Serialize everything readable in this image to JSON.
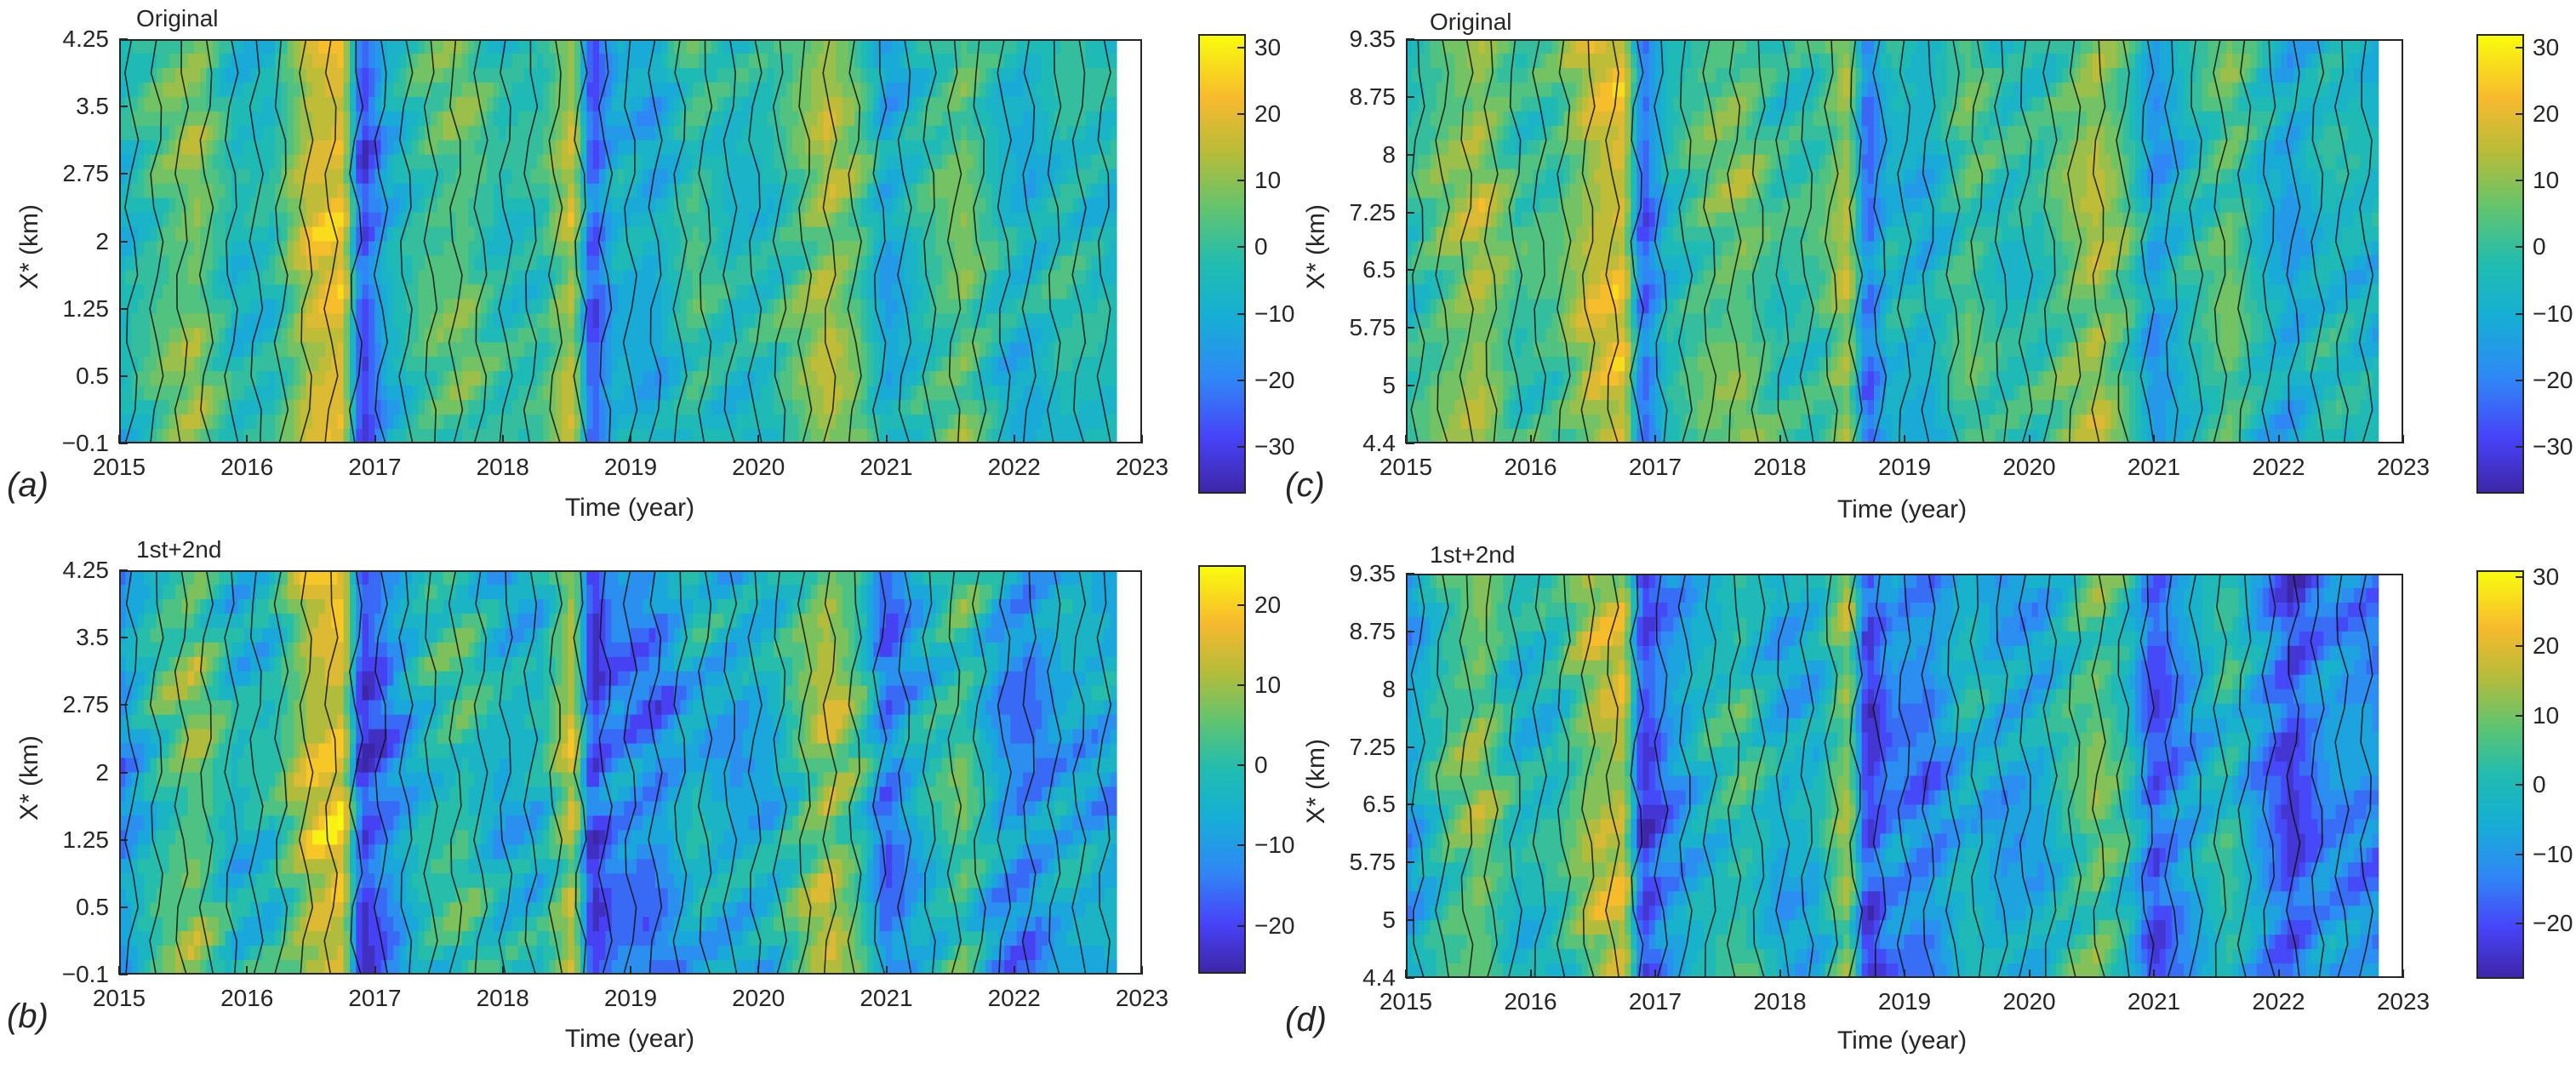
{
  "colormap": [
    "#3e26a8",
    "#4743f8",
    "#2f88f5",
    "#16aed5",
    "#21bcb0",
    "#61c46f",
    "#b5bc3a",
    "#f7b92e",
    "#f9fb0e"
  ],
  "chart_data": [
    {
      "id": "a",
      "panel_label": "(a)",
      "type": "heatmap",
      "title": "Original",
      "xlabel": "Time (year)",
      "ylabel": "X* (km)",
      "x_ticks": [
        "2015",
        "2016",
        "2017",
        "2018",
        "2019",
        "2020",
        "2021",
        "2022",
        "2023"
      ],
      "y_ticks": [
        "4.25",
        "3.5",
        "2.75",
        "2",
        "1.25",
        "0.5",
        "-0.1"
      ],
      "xlim": [
        2015,
        2023
      ],
      "ylim": [
        -0.1,
        4.25
      ],
      "data_xmax": 2022.8,
      "colorbar_ticks": [
        "30",
        "20",
        "10",
        "0",
        "-10",
        "-20",
        "-30"
      ],
      "clim": [
        -37,
        32
      ],
      "time_profile": [
        [
          2015.0,
          -8
        ],
        [
          2015.3,
          2
        ],
        [
          2015.6,
          10
        ],
        [
          2015.9,
          -6
        ],
        [
          2016.2,
          -4
        ],
        [
          2016.5,
          18
        ],
        [
          2016.75,
          22
        ],
        [
          2016.9,
          -30
        ],
        [
          2017.1,
          -10
        ],
        [
          2017.4,
          2
        ],
        [
          2017.7,
          6
        ],
        [
          2018.0,
          -4
        ],
        [
          2018.3,
          -2
        ],
        [
          2018.55,
          16
        ],
        [
          2018.7,
          -28
        ],
        [
          2018.9,
          -8
        ],
        [
          2019.2,
          -12
        ],
        [
          2019.5,
          2
        ],
        [
          2019.8,
          -6
        ],
        [
          2020.1,
          -4
        ],
        [
          2020.3,
          4
        ],
        [
          2020.55,
          14
        ],
        [
          2020.8,
          4
        ],
        [
          2021.0,
          -14
        ],
        [
          2021.3,
          -2
        ],
        [
          2021.6,
          8
        ],
        [
          2021.9,
          -6
        ],
        [
          2022.1,
          -10
        ],
        [
          2022.4,
          -2
        ],
        [
          2022.8,
          -6
        ]
      ]
    },
    {
      "id": "b",
      "panel_label": "(b)",
      "type": "heatmap",
      "title": "1st+2nd",
      "xlabel": "Time (year)",
      "ylabel": "X* (km)",
      "x_ticks": [
        "2015",
        "2016",
        "2017",
        "2018",
        "2019",
        "2020",
        "2021",
        "2022",
        "2023"
      ],
      "y_ticks": [
        "4.25",
        "3.5",
        "2.75",
        "2",
        "1.25",
        "0.5",
        "-0.1"
      ],
      "xlim": [
        2015,
        2023
      ],
      "ylim": [
        -0.1,
        4.25
      ],
      "data_xmax": 2022.8,
      "colorbar_ticks": [
        "20",
        "10",
        "0",
        "-10",
        "-20"
      ],
      "clim": [
        -26,
        25
      ],
      "time_profile": [
        [
          2015.0,
          -12
        ],
        [
          2015.3,
          0
        ],
        [
          2015.6,
          8
        ],
        [
          2015.9,
          -4
        ],
        [
          2016.2,
          -2
        ],
        [
          2016.5,
          14
        ],
        [
          2016.75,
          18
        ],
        [
          2016.9,
          -22
        ],
        [
          2017.1,
          -14
        ],
        [
          2017.4,
          -2
        ],
        [
          2017.7,
          2
        ],
        [
          2018.0,
          -6
        ],
        [
          2018.3,
          -4
        ],
        [
          2018.55,
          14
        ],
        [
          2018.7,
          -22
        ],
        [
          2018.9,
          -12
        ],
        [
          2019.2,
          -14
        ],
        [
          2019.5,
          -4
        ],
        [
          2019.8,
          -8
        ],
        [
          2020.1,
          -6
        ],
        [
          2020.3,
          2
        ],
        [
          2020.55,
          12
        ],
        [
          2020.8,
          2
        ],
        [
          2021.0,
          -16
        ],
        [
          2021.3,
          -4
        ],
        [
          2021.6,
          4
        ],
        [
          2021.9,
          -10
        ],
        [
          2022.1,
          -14
        ],
        [
          2022.4,
          -6
        ],
        [
          2022.8,
          -8
        ]
      ]
    },
    {
      "id": "c",
      "panel_label": "(c)",
      "type": "heatmap",
      "title": "Original",
      "xlabel": "Time (year)",
      "ylabel": "X* (km)",
      "x_ticks": [
        "2015",
        "2016",
        "2017",
        "2018",
        "2019",
        "2020",
        "2021",
        "2022",
        "2023"
      ],
      "y_ticks": [
        "9.35",
        "8.75",
        "8",
        "7.25",
        "6.5",
        "5.75",
        "5",
        "4.4"
      ],
      "xlim": [
        2015,
        2023
      ],
      "ylim": [
        4.4,
        9.35
      ],
      "data_xmax": 2022.8,
      "colorbar_ticks": [
        "30",
        "20",
        "10",
        "0",
        "-10",
        "-20",
        "-30"
      ],
      "clim": [
        -37,
        32
      ],
      "time_profile": [
        [
          2015.0,
          -4
        ],
        [
          2015.3,
          6
        ],
        [
          2015.6,
          14
        ],
        [
          2015.9,
          0
        ],
        [
          2016.2,
          2
        ],
        [
          2016.5,
          16
        ],
        [
          2016.75,
          20
        ],
        [
          2016.9,
          -26
        ],
        [
          2017.1,
          -6
        ],
        [
          2017.4,
          4
        ],
        [
          2017.7,
          8
        ],
        [
          2018.0,
          -2
        ],
        [
          2018.3,
          0
        ],
        [
          2018.55,
          14
        ],
        [
          2018.7,
          -24
        ],
        [
          2018.9,
          -6
        ],
        [
          2019.2,
          -10
        ],
        [
          2019.5,
          4
        ],
        [
          2019.8,
          -4
        ],
        [
          2020.1,
          -2
        ],
        [
          2020.3,
          6
        ],
        [
          2020.55,
          14
        ],
        [
          2020.8,
          2
        ],
        [
          2021.0,
          -16
        ],
        [
          2021.3,
          -4
        ],
        [
          2021.6,
          6
        ],
        [
          2021.9,
          -8
        ],
        [
          2022.1,
          -14
        ],
        [
          2022.4,
          -4
        ],
        [
          2022.8,
          -8
        ]
      ]
    },
    {
      "id": "d",
      "panel_label": "(d)",
      "type": "heatmap",
      "title": "1st+2nd",
      "xlabel": "Time (year)",
      "ylabel": "X* (km)",
      "x_ticks": [
        "2015",
        "2016",
        "2017",
        "2018",
        "2019",
        "2020",
        "2021",
        "2022",
        "2023"
      ],
      "y_ticks": [
        "9.35",
        "8.75",
        "8",
        "7.25",
        "6.5",
        "5.75",
        "5",
        "4.4"
      ],
      "xlim": [
        2015,
        2023
      ],
      "ylim": [
        4.4,
        9.35
      ],
      "data_xmax": 2022.8,
      "colorbar_ticks": [
        "30",
        "20",
        "10",
        "0",
        "-10",
        "-20"
      ],
      "clim": [
        -28,
        31
      ],
      "time_profile": [
        [
          2015.0,
          -10
        ],
        [
          2015.3,
          4
        ],
        [
          2015.6,
          12
        ],
        [
          2015.9,
          -2
        ],
        [
          2016.2,
          0
        ],
        [
          2016.5,
          14
        ],
        [
          2016.75,
          18
        ],
        [
          2016.9,
          -24
        ],
        [
          2017.1,
          -12
        ],
        [
          2017.4,
          -2
        ],
        [
          2017.7,
          4
        ],
        [
          2018.0,
          -6
        ],
        [
          2018.3,
          -4
        ],
        [
          2018.55,
          14
        ],
        [
          2018.7,
          -24
        ],
        [
          2018.9,
          -12
        ],
        [
          2019.2,
          -14
        ],
        [
          2019.5,
          -2
        ],
        [
          2019.8,
          -8
        ],
        [
          2020.1,
          -6
        ],
        [
          2020.3,
          2
        ],
        [
          2020.55,
          10
        ],
        [
          2020.8,
          0
        ],
        [
          2021.0,
          -20
        ],
        [
          2021.3,
          -8
        ],
        [
          2021.6,
          2
        ],
        [
          2021.9,
          -12
        ],
        [
          2022.1,
          -22
        ],
        [
          2022.4,
          -10
        ],
        [
          2022.8,
          -12
        ]
      ]
    }
  ]
}
